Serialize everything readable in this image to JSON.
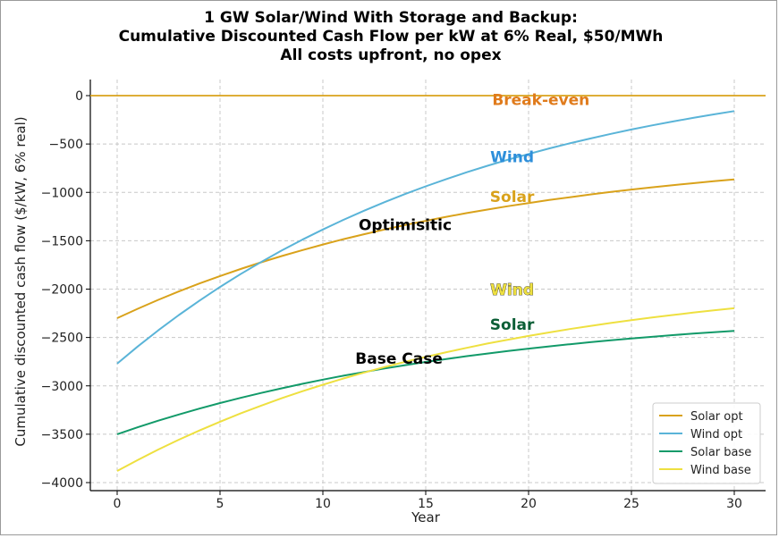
{
  "chart_data": {
    "type": "line",
    "title": [
      "1 GW Solar/Wind With Storage and Backup:",
      "Cumulative Discounted Cash Flow per kW at 6% Real, $50/MWh",
      "All costs upfront, no opex"
    ],
    "xlabel": "Year",
    "ylabel": "Cumulative discounted cash flow ($/kW, 6% real)",
    "xlim": [
      -1.3,
      31.5
    ],
    "ylim": [
      -4080,
      180
    ],
    "xticks": [
      0,
      5,
      10,
      15,
      20,
      25,
      30
    ],
    "xtick_labels": [
      "0",
      "5",
      "10",
      "15",
      "20",
      "25",
      "30"
    ],
    "yticks": [
      0,
      -500,
      -1000,
      -1500,
      -2000,
      -2500,
      -3000,
      -3500,
      -4000
    ],
    "ytick_labels": [
      "0",
      "−500",
      "−1000",
      "−1500",
      "−2000",
      "−2500",
      "−3000",
      "−3500",
      "−4000"
    ],
    "grid": true,
    "legend_position": "bottom-right",
    "x": [
      0,
      1,
      2,
      3,
      4,
      5,
      6,
      7,
      8,
      9,
      10,
      11,
      12,
      13,
      14,
      15,
      16,
      17,
      18,
      19,
      20,
      21,
      22,
      23,
      24,
      25,
      26,
      27,
      28,
      29,
      30
    ],
    "series": [
      {
        "name": "Solar opt",
        "color": "#D9A21B",
        "values": [
          -2300,
          -2203,
          -2111,
          -2024,
          -1942,
          -1865,
          -1792,
          -1723,
          -1658,
          -1597,
          -1539,
          -1484,
          -1433,
          -1384,
          -1338,
          -1294,
          -1253,
          -1214,
          -1178,
          -1143,
          -1110,
          -1079,
          -1050,
          -1022,
          -996,
          -971,
          -948,
          -926,
          -905,
          -885,
          -866
        ]
      },
      {
        "name": "Wind opt",
        "color": "#5AB4D8",
        "values": [
          -2770,
          -2593,
          -2426,
          -2268,
          -2119,
          -1978,
          -1845,
          -1720,
          -1601,
          -1489,
          -1384,
          -1284,
          -1190,
          -1101,
          -1017,
          -938,
          -863,
          -792,
          -725,
          -662,
          -603,
          -546,
          -493,
          -443,
          -395,
          -350,
          -308,
          -268,
          -230,
          -194,
          -160
        ]
      },
      {
        "name": "Solar base",
        "color": "#129A69",
        "values": [
          -3500,
          -3428,
          -3360,
          -3296,
          -3235,
          -3178,
          -3124,
          -3073,
          -3025,
          -2979,
          -2936,
          -2895,
          -2857,
          -2820,
          -2786,
          -2753,
          -2722,
          -2693,
          -2666,
          -2640,
          -2615,
          -2592,
          -2570,
          -2549,
          -2529,
          -2510,
          -2493,
          -2476,
          -2460,
          -2445,
          -2431
        ]
      },
      {
        "name": "Wind base",
        "color": "#EEE040",
        "values": [
          -3880,
          -3766,
          -3658,
          -3557,
          -3461,
          -3371,
          -3285,
          -3205,
          -3128,
          -3056,
          -2988,
          -2924,
          -2863,
          -2806,
          -2752,
          -2701,
          -2652,
          -2607,
          -2563,
          -2523,
          -2484,
          -2448,
          -2413,
          -2381,
          -2350,
          -2321,
          -2294,
          -2268,
          -2243,
          -2220,
          -2198
        ]
      }
    ],
    "breakeven_line": {
      "y": 0,
      "color": "#D9A21B"
    },
    "annotations": [
      {
        "text": "Break-even",
        "x": 20.6,
        "y": -95,
        "color": "#E07B1C",
        "outline": false
      },
      {
        "text": "Wind",
        "x": 19.2,
        "y": -690,
        "color": "#2E8FDA",
        "outline": false
      },
      {
        "text": "Solar",
        "x": 19.2,
        "y": -1100,
        "color": "#D9A21B",
        "outline": false
      },
      {
        "text": "Optimisitic",
        "x": 14.0,
        "y": -1390,
        "color": "#000000",
        "outline": false
      },
      {
        "text": "Wind",
        "x": 19.2,
        "y": -2060,
        "color": "#EEE040",
        "outline": true
      },
      {
        "text": "Solar",
        "x": 19.2,
        "y": -2420,
        "color": "#0B5E36",
        "outline": false
      },
      {
        "text": "Base Case",
        "x": 13.7,
        "y": -2770,
        "color": "#000000",
        "outline": false
      }
    ]
  }
}
